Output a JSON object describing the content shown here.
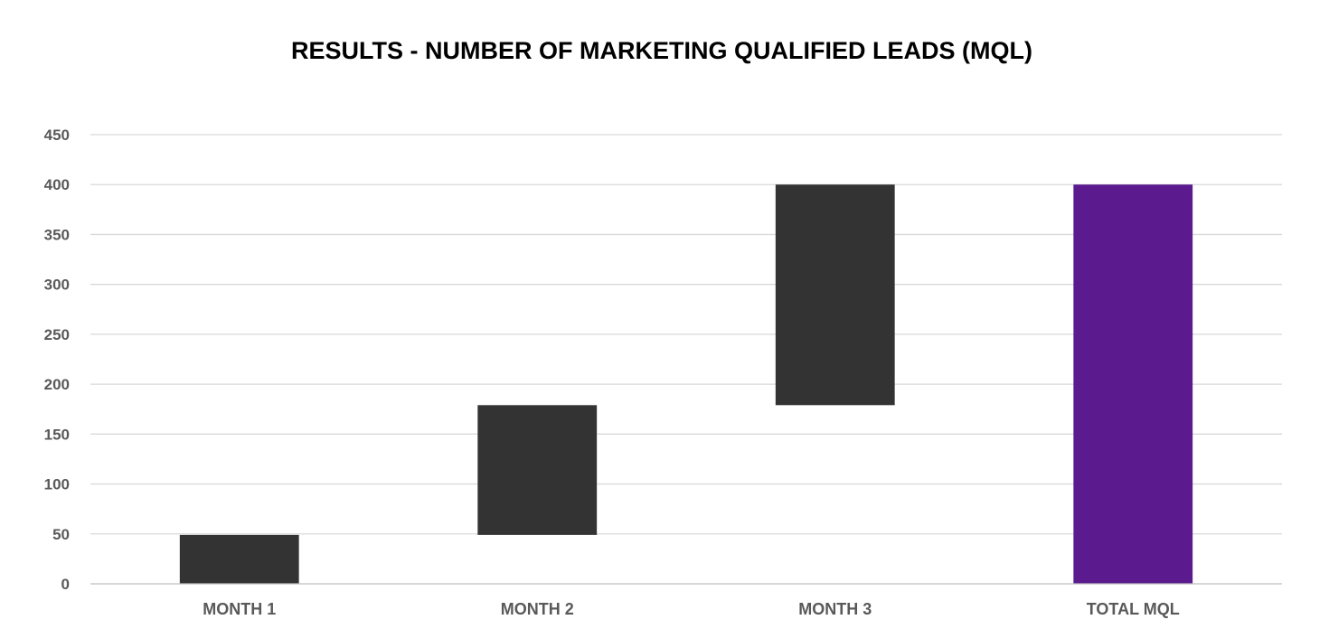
{
  "chart_data": {
    "type": "bar",
    "subtype": "waterfall",
    "title": "RESULTS - NUMBER OF MARKETING QUALIFIED LEADS (MQL)",
    "xlabel": "",
    "ylabel": "",
    "categories": [
      "MONTH 1",
      "MONTH 2",
      "MONTH 3",
      "TOTAL MQL"
    ],
    "bars": [
      {
        "category": "MONTH 1",
        "start": 0,
        "end": 49,
        "kind": "increment"
      },
      {
        "category": "MONTH 2",
        "start": 49,
        "end": 179,
        "kind": "increment"
      },
      {
        "category": "MONTH 3",
        "start": 179,
        "end": 400,
        "kind": "increment"
      },
      {
        "category": "TOTAL MQL",
        "start": 0,
        "end": 400,
        "kind": "total"
      }
    ],
    "ylim": [
      0,
      450
    ],
    "yticks": [
      0,
      50,
      100,
      150,
      200,
      250,
      300,
      350,
      400,
      450
    ],
    "grid": true,
    "legend": "none",
    "colors": {
      "increment": "#333333",
      "total": "#5b1a8e",
      "grid": "#d9d9d9",
      "tick_text": "#595959",
      "title_text": "#000000"
    }
  }
}
